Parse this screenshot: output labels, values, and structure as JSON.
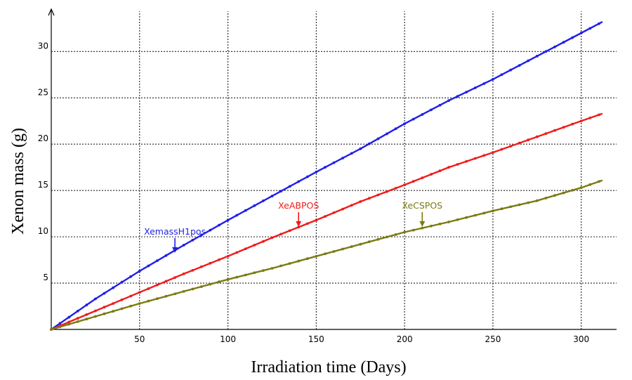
{
  "chart_data": {
    "type": "line",
    "xlabel": "Irradiation time (Days)",
    "ylabel": "Xenon mass  (g)",
    "xlim": [
      0,
      318
    ],
    "ylim": [
      0,
      34.5
    ],
    "x_ticks": [
      50,
      100,
      150,
      200,
      250,
      300
    ],
    "y_ticks": [
      5,
      10,
      15,
      20,
      25,
      30
    ],
    "grid": true,
    "series": [
      {
        "name": "XemassH1pos",
        "color": "#1f1fe8",
        "points": [
          [
            0,
            0
          ],
          [
            25,
            3.3
          ],
          [
            50,
            6.3
          ],
          [
            75,
            9.1
          ],
          [
            100,
            11.8
          ],
          [
            125,
            14.4
          ],
          [
            150,
            17.0
          ],
          [
            175,
            19.5
          ],
          [
            200,
            22.2
          ],
          [
            225,
            24.7
          ],
          [
            250,
            27.0
          ],
          [
            275,
            29.5
          ],
          [
            300,
            32.0
          ],
          [
            312,
            33.2
          ]
        ],
        "label_anchor": [
          70,
          8.2
        ]
      },
      {
        "name": "XeABPOS",
        "color": "#ee1c1c",
        "points": [
          [
            0,
            0
          ],
          [
            25,
            2.0
          ],
          [
            50,
            4.0
          ],
          [
            75,
            6.0
          ],
          [
            100,
            7.9
          ],
          [
            125,
            9.9
          ],
          [
            150,
            11.8
          ],
          [
            175,
            13.8
          ],
          [
            200,
            15.6
          ],
          [
            225,
            17.5
          ],
          [
            250,
            19.1
          ],
          [
            275,
            20.8
          ],
          [
            300,
            22.5
          ],
          [
            312,
            23.3
          ]
        ],
        "label_anchor": [
          140,
          11.0
        ]
      },
      {
        "name": "XeCSPOS",
        "color": "#7a7a10",
        "points": [
          [
            0,
            0
          ],
          [
            25,
            1.4
          ],
          [
            50,
            2.8
          ],
          [
            75,
            4.1
          ],
          [
            100,
            5.4
          ],
          [
            125,
            6.6
          ],
          [
            150,
            7.9
          ],
          [
            175,
            9.2
          ],
          [
            200,
            10.5
          ],
          [
            225,
            11.6
          ],
          [
            250,
            12.8
          ],
          [
            275,
            13.9
          ],
          [
            300,
            15.3
          ],
          [
            312,
            16.1
          ]
        ],
        "label_anchor": [
          210,
          11.0
        ]
      }
    ]
  }
}
